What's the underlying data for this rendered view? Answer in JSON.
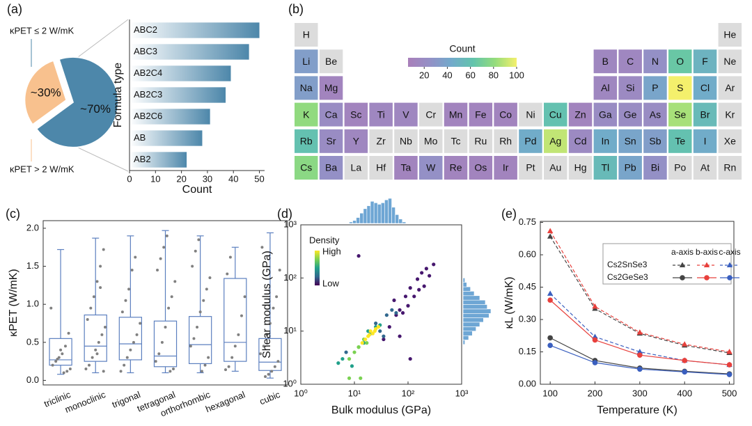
{
  "chart_data": [
    {
      "type": "pie",
      "label": "(a)",
      "categories": [
        "κPET ≤ 2 W/mK",
        "κPET > 2 W/mK"
      ],
      "values": [
        70,
        30
      ],
      "value_labels": [
        "~70%",
        "~30%"
      ],
      "colors": [
        "#4d87aa",
        "#f8c18e"
      ]
    },
    {
      "type": "barh",
      "categories": [
        "ABC2",
        "ABC3",
        "AB2C4",
        "AB2C3",
        "AB2C6",
        "AB",
        "AB2"
      ],
      "values": [
        50,
        46,
        39,
        37,
        31,
        28,
        22
      ],
      "color": "#4d87aa",
      "xlim": [
        0,
        52
      ],
      "xticks": [
        0,
        10,
        20,
        30,
        40,
        50
      ],
      "xlabel": "Count",
      "ylabel": "Formula type"
    },
    {
      "type": "ptable",
      "label": "(b)",
      "symbols": [
        [
          "H",
          null,
          null,
          null,
          null,
          null,
          null,
          null,
          null,
          null,
          null,
          null,
          null,
          null,
          null,
          null,
          null,
          "He"
        ],
        [
          "Li",
          "Be",
          null,
          null,
          null,
          null,
          null,
          null,
          null,
          null,
          null,
          null,
          "B",
          "C",
          "N",
          "O",
          "F",
          "Ne"
        ],
        [
          "Na",
          "Mg",
          null,
          null,
          null,
          null,
          null,
          null,
          null,
          null,
          null,
          null,
          "Al",
          "Si",
          "P",
          "S",
          "Cl",
          "Ar"
        ],
        [
          "K",
          "Ca",
          "Sc",
          "Ti",
          "V",
          "Cr",
          "Mn",
          "Fe",
          "Co",
          "Ni",
          "Cu",
          "Zn",
          "Ga",
          "Ge",
          "As",
          "Se",
          "Br",
          "Kr"
        ],
        [
          "Rb",
          "Sr",
          "Y",
          "Zr",
          "Nb",
          "Mo",
          "Tc",
          "Ru",
          "Rh",
          "Pd",
          "Ag",
          "Cd",
          "In",
          "Sn",
          "Sb",
          "Te",
          "I",
          "Xe"
        ],
        [
          "Cs",
          "Ba",
          "La",
          "Hf",
          "Ta",
          "W",
          "Re",
          "Os",
          "Ir",
          "Pt",
          "Au",
          "Hg",
          "Tl",
          "Pb",
          "Bi",
          "Po",
          "At",
          "Rn"
        ]
      ],
      "counts": [
        [
          null,
          null,
          null,
          null,
          null,
          null,
          null,
          null,
          null,
          null,
          null,
          null,
          null,
          null,
          null,
          null,
          null,
          null
        ],
        [
          35,
          null,
          null,
          null,
          null,
          null,
          null,
          null,
          null,
          null,
          null,
          null,
          15,
          15,
          25,
          65,
          50,
          null
        ],
        [
          35,
          12,
          null,
          null,
          null,
          null,
          null,
          null,
          null,
          null,
          null,
          null,
          15,
          18,
          40,
          100,
          45,
          null
        ],
        [
          80,
          20,
          12,
          15,
          15,
          null,
          12,
          12,
          12,
          null,
          60,
          12,
          20,
          20,
          20,
          85,
          55,
          null
        ],
        [
          60,
          20,
          15,
          null,
          null,
          null,
          null,
          null,
          null,
          45,
          90,
          18,
          45,
          40,
          35,
          60,
          45,
          null
        ],
        [
          78,
          25,
          null,
          null,
          12,
          25,
          12,
          12,
          12,
          null,
          null,
          null,
          55,
          40,
          25,
          null,
          null,
          null
        ]
      ],
      "empty_color": "#dcdcdc",
      "colormap": [
        "#a97fba",
        "#9490c6",
        "#72aacb",
        "#62c4ac",
        "#94dc7c",
        "#f4f06c"
      ],
      "clim": [
        6,
        100
      ],
      "colorbar_title": "Count",
      "colorbar_ticks": [
        20,
        40,
        60,
        80,
        100
      ]
    },
    {
      "type": "box",
      "label": "(c)",
      "categories": [
        "triclinic",
        "monoclinic",
        "trigonal",
        "tetragonal",
        "orthorhombic",
        "hexagonal",
        "cubic"
      ],
      "boxes": [
        {
          "min": 0.08,
          "q1": 0.2,
          "median": 0.27,
          "q3": 0.55,
          "max": 1.72
        },
        {
          "min": 0.1,
          "q1": 0.25,
          "median": 0.45,
          "q3": 0.86,
          "max": 1.87
        },
        {
          "min": 0.1,
          "q1": 0.27,
          "median": 0.48,
          "q3": 0.83,
          "max": 1.9
        },
        {
          "min": 0.1,
          "q1": 0.18,
          "median": 0.32,
          "q3": 0.78,
          "max": 1.97
        },
        {
          "min": 0.1,
          "q1": 0.22,
          "median": 0.47,
          "q3": 0.84,
          "max": 1.9
        },
        {
          "min": 0.12,
          "q1": 0.25,
          "median": 0.5,
          "q3": 1.34,
          "max": 1.75
        },
        {
          "min": 0.03,
          "q1": 0.13,
          "median": 0.24,
          "q3": 0.55,
          "max": 1.94
        }
      ],
      "points": [
        [
          0.95,
          0.62,
          0.45,
          0.35,
          0.3,
          0.25,
          0.2,
          0.15,
          0.12,
          0.1,
          0.4,
          0.28
        ],
        [
          1.72,
          1.5,
          1.3,
          1.1,
          0.95,
          0.8,
          0.7,
          0.6,
          0.5,
          0.4,
          0.3,
          0.2,
          0.15,
          0.12,
          1.22,
          0.35
        ],
        [
          1.62,
          1.45,
          1.2,
          1.05,
          0.9,
          0.75,
          0.6,
          0.5,
          0.4,
          0.3,
          0.2,
          0.12
        ],
        [
          1.9,
          1.75,
          1.6,
          1.45,
          1.3,
          1.1,
          0.95,
          0.7,
          0.5,
          0.35,
          0.25,
          0.15,
          0.12
        ],
        [
          1.85,
          1.7,
          1.5,
          1.35,
          1.2,
          1.05,
          0.9,
          0.7,
          0.55,
          0.45,
          0.3,
          0.2,
          0.12
        ],
        [
          1.62,
          1.4,
          1.1,
          0.85,
          0.6,
          0.45,
          0.3,
          0.18,
          0.14
        ],
        [
          1.75,
          1.45,
          1.1,
          0.95,
          0.75,
          0.6,
          0.45,
          0.35,
          0.25,
          0.18,
          0.12,
          0.08,
          0.05
        ]
      ],
      "box_color": "#5b7fbf",
      "point_color": "#808080",
      "ylim": [
        -0.06,
        2.1
      ],
      "yticks": [
        {
          "value": 0,
          "label": "0.0"
        },
        0.5,
        {
          "value": 1,
          "label": "1.0"
        },
        1.5,
        {
          "value": 2,
          "label": "2.0"
        }
      ],
      "ylabel": "κPET (W/mK)"
    },
    {
      "type": "scatter",
      "label": "(d)",
      "xscale": "log",
      "yscale": "log",
      "xlim": [
        1,
        1000
      ],
      "ylim": [
        1,
        1000
      ],
      "xticks": [
        {
          "value": 1,
          "label": "10⁰"
        },
        {
          "value": 10,
          "label": "10¹"
        },
        {
          "value": 100,
          "label": "10²"
        },
        {
          "value": 1000,
          "label": "10³"
        }
      ],
      "yticks": [
        {
          "value": 1,
          "label": "10⁰"
        },
        {
          "value": 10,
          "label": "10¹"
        },
        {
          "value": 100,
          "label": "10²"
        },
        {
          "value": 1000,
          "label": "10³"
        }
      ],
      "xlabel": "Bulk modulus (GPa)",
      "ylabel": "Shear modulus (GPa)",
      "series": [
        {
          "color": "#46176e",
          "x": [
            300,
            220,
            150,
            110,
            90,
            70,
            55,
            130,
            45,
            35,
            250,
            180,
            100,
            12,
            110,
            70,
            60,
            200,
            160,
            80
          ],
          "y": [
            180,
            150,
            95,
            65,
            45,
            25,
            38,
            45,
            12,
            7,
            110,
            125,
            30,
            260,
            3,
            8,
            20,
            70,
            60,
            22
          ]
        },
        {
          "color": "#31688e",
          "x": [
            40,
            30,
            50,
            25,
            7,
            60,
            35
          ],
          "y": [
            20,
            10,
            25,
            14,
            4,
            22,
            8
          ]
        },
        {
          "color": "#21a08a",
          "x": [
            20,
            25,
            15,
            6,
            9,
            5,
            30,
            18
          ],
          "y": [
            9,
            12,
            6,
            3,
            2.2,
            2.5,
            13,
            10
          ]
        },
        {
          "color": "#7ad151",
          "x": [
            12,
            15,
            10,
            8,
            13,
            12,
            8,
            17
          ],
          "y": [
            5,
            7,
            4,
            3,
            1.3,
            5,
            1.3,
            6
          ]
        },
        {
          "color": "#fde725",
          "x": [
            18,
            22,
            25,
            20,
            16,
            28,
            14,
            24,
            19
          ],
          "y": [
            8,
            9,
            11,
            10,
            7,
            12,
            6,
            10,
            8.5
          ]
        }
      ],
      "hist_color": "#6ea6d4",
      "x_hist": {
        "bins": [
          8,
          9.3,
          10.8,
          12.6,
          14.7,
          17.1,
          19.9,
          23.2,
          27,
          31.4,
          36.6,
          42.6,
          49.6,
          57.7,
          67.2,
          78.2,
          91
        ],
        "counts": [
          1,
          2,
          4,
          7,
          10,
          12,
          15,
          14,
          13,
          14,
          16,
          17,
          11,
          6,
          3,
          1
        ]
      },
      "y_hist": {
        "bins": [
          5.6,
          6.8,
          8.2,
          10,
          12.1,
          14.7,
          17.8,
          21.5,
          26.1,
          31.6,
          38.3,
          46.4,
          56.2,
          68.1,
          82.5,
          100
        ],
        "counts": [
          1,
          3,
          5,
          7,
          9,
          11,
          14,
          15,
          13,
          12,
          9,
          6,
          4,
          2,
          1
        ]
      },
      "colorbar": {
        "title": "Density",
        "high": "High",
        "low": "Low",
        "colors": [
          "#440154",
          "#31688e",
          "#21a08a",
          "#7ad151",
          "#fde725"
        ]
      }
    },
    {
      "type": "line",
      "label": "(e)",
      "x": [
        100,
        200,
        300,
        400,
        500
      ],
      "xlim": [
        78,
        510
      ],
      "xticks": [
        100,
        200,
        300,
        400,
        500
      ],
      "ylim": [
        0,
        0.755
      ],
      "yticks": [
        {
          "value": 0,
          "label": "0.00"
        },
        {
          "value": 0.15,
          "label": "0.15"
        },
        {
          "value": 0.3,
          "label": "0.30"
        },
        {
          "value": 0.45,
          "label": "0.45"
        },
        {
          "value": 0.6,
          "label": "0.60"
        },
        {
          "value": 0.75,
          "label": "0.75"
        }
      ],
      "xlabel": "Temperature (K)",
      "ylabel": "κL (W/mK)",
      "series": [
        {
          "color": "#444444",
          "dash": true,
          "marker": "triangle",
          "values": [
            0.685,
            0.35,
            0.235,
            0.18,
            0.145
          ]
        },
        {
          "color": "#e8403c",
          "dash": true,
          "marker": "triangle",
          "values": [
            0.71,
            0.36,
            0.24,
            0.185,
            0.15
          ]
        },
        {
          "color": "#3a5fbf",
          "dash": true,
          "marker": "triangle",
          "values": [
            0.42,
            0.22,
            0.15,
            0.11,
            0.09
          ]
        },
        {
          "color": "#444444",
          "dash": false,
          "marker": "circle",
          "values": [
            0.215,
            0.11,
            0.075,
            0.06,
            0.048
          ]
        },
        {
          "color": "#e8403c",
          "dash": false,
          "marker": "circle",
          "values": [
            0.39,
            0.205,
            0.135,
            0.11,
            0.09
          ]
        },
        {
          "color": "#3a5fbf",
          "dash": false,
          "marker": "circle",
          "values": [
            0.18,
            0.1,
            0.07,
            0.057,
            0.045
          ]
        }
      ],
      "legend": {
        "columns": [
          "a-axis",
          "b-axis",
          "c-axis"
        ],
        "rows": [
          "Cs2SnSe3",
          "Cs2GeSe3"
        ]
      }
    }
  ]
}
